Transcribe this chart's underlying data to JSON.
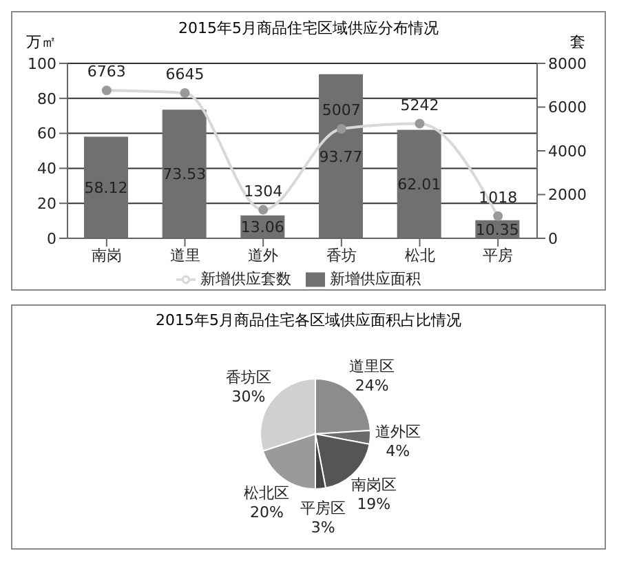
{
  "chart_data": [
    {
      "type": "bar",
      "title": "2015年5月商品住宅区域供应分布情况",
      "ylabel": "万㎡",
      "y2label": "套",
      "categories": [
        "南岗",
        "道里",
        "道外",
        "香坊",
        "松北",
        "平房"
      ],
      "series": [
        {
          "name": "新增供应面积",
          "type": "bar",
          "color": "#707070",
          "values": [
            58.12,
            73.53,
            13.06,
            93.77,
            62.01,
            10.35
          ]
        },
        {
          "name": "新增供应套数",
          "type": "line",
          "axis": "y2",
          "color": "#d8d8d8",
          "values": [
            6763,
            6645,
            1304,
            5007,
            5242,
            1018
          ]
        }
      ],
      "ylim": [
        0,
        100
      ],
      "yticks": [
        0,
        20,
        40,
        60,
        80,
        100
      ],
      "y2lim": [
        0,
        8000
      ],
      "y2ticks": [
        0,
        2000,
        4000,
        6000,
        8000
      ],
      "grid": "y",
      "legend": "bottom",
      "data_labels": true,
      "marker": "circle"
    },
    {
      "type": "pie",
      "title": "2015年5月商品住宅各区域供应面积占比情况",
      "categories": [
        "道里区",
        "道外区",
        "南岗区",
        "平房区",
        "松北区",
        "香坊区"
      ],
      "values": [
        24,
        4,
        19,
        3,
        20,
        30
      ],
      "colors": [
        "#8c8c8c",
        "#6a6a6a",
        "#555555",
        "#444444",
        "#9a9a9a",
        "#d0d0d0"
      ],
      "value_labels": [
        "24%",
        "4%",
        "19%",
        "3%",
        "20%",
        "30%"
      ]
    }
  ]
}
